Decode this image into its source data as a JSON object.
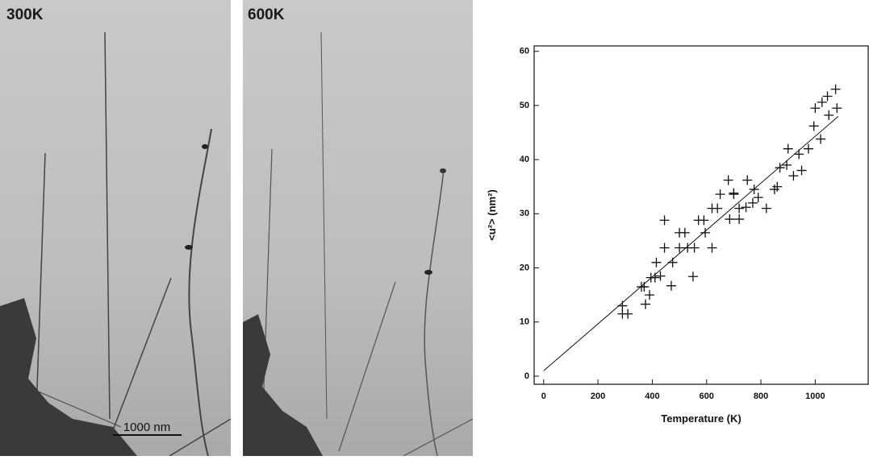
{
  "images": [
    {
      "label": "300K",
      "scale_bar": "1000 nm"
    },
    {
      "label": "600K"
    }
  ],
  "chart_data": {
    "type": "scatter",
    "x_label": "Temperature (K)",
    "y_label": "<u²>  (nm²)",
    "x": [
      290,
      290,
      310,
      360,
      370,
      375,
      390,
      395,
      410,
      415,
      430,
      445,
      445,
      470,
      475,
      500,
      500,
      520,
      530,
      550,
      555,
      570,
      590,
      595,
      620,
      620,
      640,
      650,
      680,
      685,
      700,
      700,
      720,
      720,
      745,
      750,
      770,
      775,
      790,
      820,
      850,
      860,
      870,
      895,
      900,
      920,
      940,
      950,
      975,
      995,
      1000,
      1020,
      1025,
      1045,
      1050,
      1075,
      1080
    ],
    "values": [
      13,
      11.5,
      11.5,
      16.5,
      16.5,
      13.3,
      15,
      18.2,
      18.2,
      21,
      18.5,
      23.7,
      28.8,
      16.7,
      21,
      23.7,
      26.5,
      26.5,
      23.7,
      18.4,
      23.7,
      28.8,
      28.8,
      26.5,
      23.7,
      31,
      31,
      33.6,
      36.2,
      29,
      33.6,
      33.8,
      29,
      31,
      31.2,
      36.2,
      32,
      34.5,
      33,
      31,
      34.5,
      35,
      38.5,
      39,
      42,
      37,
      41,
      38,
      42,
      46.2,
      49.5,
      43.8,
      50.6,
      51.7,
      48.2,
      53,
      49.5
    ],
    "fit": {
      "x": [
        0,
        1085
      ],
      "values": [
        1,
        48
      ]
    },
    "color": "#111111",
    "xlim": [
      -35,
      1195
    ],
    "ylim": [
      -1.5,
      61
    ],
    "xticks": [
      0,
      200,
      400,
      600,
      800,
      1000
    ],
    "yticks": [
      0,
      10,
      20,
      30,
      40,
      50,
      60
    ]
  }
}
